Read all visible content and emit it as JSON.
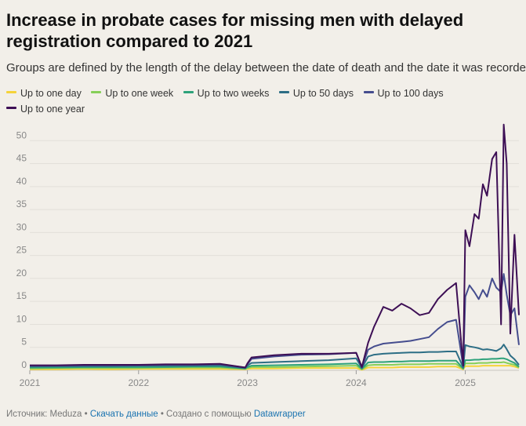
{
  "header": {
    "title": "Increase in probate cases for missing men with delayed registration compared to 2021",
    "subtitle": "Groups are defined by the length of the delay between the date of death and the date it was recorded"
  },
  "legend": [
    {
      "label": "Up to one day",
      "color": "#f5d33a"
    },
    {
      "label": "Up to one week",
      "color": "#86cf58"
    },
    {
      "label": "Up to two weeks",
      "color": "#2ea27a"
    },
    {
      "label": "Up to 50 days",
      "color": "#2d6e85"
    },
    {
      "label": "Up to 100 days",
      "color": "#454d8e"
    },
    {
      "label": "Up to one year",
      "color": "#3d0f55"
    }
  ],
  "footer": {
    "source": "Источник: Meduza",
    "sep1": " • ",
    "download": "Скачать данные",
    "sep2": " • Создано с помощью ",
    "tool": "Datawrapper"
  },
  "chart_data": {
    "type": "line",
    "x_axis": {
      "type": "date",
      "range": [
        "2021-01-01",
        "2025-06-30"
      ],
      "ticks": [
        "2021",
        "2022",
        "2023",
        "2024",
        "2025"
      ]
    },
    "y_axis": {
      "range": [
        0,
        55
      ],
      "ticks": [
        0,
        5,
        10,
        15,
        20,
        25,
        30,
        35,
        40,
        45,
        50
      ]
    },
    "grid": "horizontal",
    "legend_position": "top",
    "x": [
      "2021-01-01",
      "2021-04-01",
      "2021-07-01",
      "2021-10-01",
      "2022-01-01",
      "2022-04-01",
      "2022-07-01",
      "2022-10-01",
      "2022-12-25",
      "2023-01-01",
      "2023-01-15",
      "2023-04-01",
      "2023-07-01",
      "2023-10-01",
      "2024-01-01",
      "2024-01-20",
      "2024-02-10",
      "2024-03-01",
      "2024-04-01",
      "2024-05-01",
      "2024-06-01",
      "2024-07-01",
      "2024-08-01",
      "2024-09-01",
      "2024-10-01",
      "2024-11-01",
      "2024-12-01",
      "2024-12-25",
      "2025-01-01",
      "2025-01-15",
      "2025-02-01",
      "2025-02-15",
      "2025-03-01",
      "2025-03-15",
      "2025-04-01",
      "2025-04-15",
      "2025-05-01",
      "2025-05-10",
      "2025-05-20",
      "2025-06-01",
      "2025-06-15",
      "2025-06-30"
    ],
    "series": [
      {
        "name": "Up to one day",
        "values": [
          0.2,
          0.2,
          0.3,
          0.2,
          0.3,
          0.3,
          0.3,
          0.3,
          0.2,
          0.3,
          0.4,
          0.4,
          0.5,
          0.5,
          0.5,
          0.1,
          0.6,
          0.6,
          0.6,
          0.6,
          0.7,
          0.7,
          0.7,
          0.7,
          0.8,
          0.8,
          0.8,
          0.2,
          0.9,
          0.9,
          0.9,
          0.9,
          1.0,
          1.0,
          1.0,
          1.0,
          1.0,
          1.0,
          1.0,
          1.0,
          0.8,
          0.5
        ]
      },
      {
        "name": "Up to one week",
        "values": [
          0.4,
          0.5,
          0.5,
          0.5,
          0.5,
          0.6,
          0.6,
          0.6,
          0.3,
          0.5,
          0.7,
          0.7,
          0.8,
          0.9,
          1.0,
          0.2,
          1.1,
          1.2,
          1.2,
          1.2,
          1.3,
          1.3,
          1.3,
          1.4,
          1.4,
          1.4,
          1.4,
          0.3,
          1.5,
          1.5,
          1.5,
          1.6,
          1.6,
          1.6,
          1.7,
          1.7,
          1.7,
          1.8,
          1.6,
          1.4,
          1.2,
          0.6
        ]
      },
      {
        "name": "Up to two weeks",
        "values": [
          0.6,
          0.6,
          0.7,
          0.7,
          0.7,
          0.7,
          0.8,
          0.8,
          0.4,
          0.7,
          1.0,
          1.1,
          1.2,
          1.3,
          1.5,
          0.3,
          1.7,
          1.8,
          1.8,
          1.9,
          1.9,
          2.0,
          2.0,
          2.0,
          2.1,
          2.1,
          2.1,
          0.4,
          2.2,
          2.2,
          2.3,
          2.3,
          2.4,
          2.4,
          2.5,
          2.5,
          2.6,
          2.6,
          2.4,
          2.0,
          1.6,
          0.8
        ]
      },
      {
        "name": "Up to 50 days",
        "values": [
          0.8,
          0.9,
          0.9,
          0.9,
          1.0,
          1.0,
          1.0,
          1.1,
          0.5,
          1.0,
          1.6,
          1.8,
          2.0,
          2.2,
          2.6,
          0.5,
          3.0,
          3.4,
          3.6,
          3.7,
          3.8,
          3.9,
          3.9,
          4.0,
          4.0,
          4.1,
          4.1,
          0.6,
          5.5,
          5.2,
          5.0,
          4.8,
          4.5,
          4.6,
          4.4,
          4.2,
          4.8,
          5.6,
          4.6,
          3.2,
          2.4,
          1.2
        ]
      },
      {
        "name": "Up to 100 days",
        "values": [
          1.0,
          1.0,
          1.1,
          1.1,
          1.1,
          1.2,
          1.2,
          1.3,
          0.6,
          1.3,
          2.5,
          3.0,
          3.4,
          3.5,
          3.8,
          0.6,
          4.5,
          5.2,
          5.8,
          6.0,
          6.2,
          6.4,
          6.8,
          7.2,
          9.0,
          10.5,
          11.0,
          0.8,
          16.0,
          18.5,
          17.0,
          15.5,
          17.5,
          16.0,
          20.0,
          18.0,
          17.0,
          21.0,
          16.5,
          12.0,
          13.5,
          5.5
        ]
      },
      {
        "name": "Up to one year",
        "values": [
          1.1,
          1.1,
          1.2,
          1.2,
          1.2,
          1.3,
          1.3,
          1.4,
          0.6,
          1.5,
          2.8,
          3.3,
          3.6,
          3.6,
          3.8,
          0.7,
          6.0,
          9.5,
          13.8,
          13.0,
          14.5,
          13.5,
          12.0,
          12.5,
          15.5,
          17.5,
          19.0,
          1.0,
          30.5,
          27.0,
          34.0,
          33.0,
          40.5,
          38.0,
          46.0,
          47.5,
          10.0,
          53.5,
          45.0,
          8.0,
          29.5,
          12.0
        ]
      }
    ]
  }
}
